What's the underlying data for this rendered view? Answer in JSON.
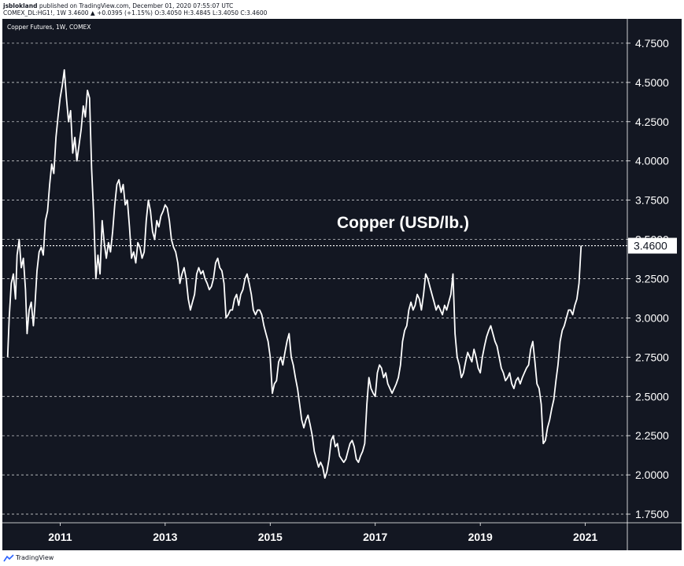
{
  "header": {
    "publisher": "jsblokland",
    "published_text": "published on TradingView.com, December 01, 2020 07:55:07 UTC",
    "symbol_line": "COMEX_DL:HG1!, 1W  3.4600  ▲ +0.0395 (+1.15%)  O:3.4050  H:3.4845  L:3.4050  C:3.4600"
  },
  "instrument_label": "Copper Futures, 1W, COMEX",
  "footer": {
    "brand": "TradingView",
    "logo_icon": "tradingview-logo-icon"
  },
  "colors": {
    "background": "#131722",
    "line": "#ffffff",
    "grid": "#ffffff",
    "last_price_box": "#ffffff",
    "axis_text": "#ffffff"
  },
  "chart_data": {
    "type": "line",
    "title": "Copper (USD/lb.)",
    "xlabel": "",
    "ylabel": "",
    "series": [
      {
        "values": [
          [
            2010.0,
            2.75
          ],
          [
            2010.03,
            3.0
          ],
          [
            2010.07,
            3.22
          ],
          [
            2010.11,
            3.28
          ],
          [
            2010.15,
            3.12
          ],
          [
            2010.18,
            3.4
          ],
          [
            2010.22,
            3.5
          ],
          [
            2010.26,
            3.32
          ],
          [
            2010.3,
            3.38
          ],
          [
            2010.34,
            3.18
          ],
          [
            2010.37,
            2.9
          ],
          [
            2010.41,
            3.05
          ],
          [
            2010.45,
            3.1
          ],
          [
            2010.49,
            2.95
          ],
          [
            2010.52,
            3.08
          ],
          [
            2010.56,
            3.3
          ],
          [
            2010.6,
            3.42
          ],
          [
            2010.64,
            3.45
          ],
          [
            2010.68,
            3.4
          ],
          [
            2010.72,
            3.62
          ],
          [
            2010.76,
            3.68
          ],
          [
            2010.8,
            3.85
          ],
          [
            2010.84,
            3.98
          ],
          [
            2010.88,
            3.92
          ],
          [
            2010.92,
            4.15
          ],
          [
            2010.96,
            4.28
          ],
          [
            2011.0,
            4.4
          ],
          [
            2011.04,
            4.48
          ],
          [
            2011.08,
            4.58
          ],
          [
            2011.12,
            4.4
          ],
          [
            2011.16,
            4.25
          ],
          [
            2011.2,
            4.32
          ],
          [
            2011.24,
            4.05
          ],
          [
            2011.28,
            4.15
          ],
          [
            2011.32,
            4.0
          ],
          [
            2011.36,
            4.1
          ],
          [
            2011.4,
            4.2
          ],
          [
            2011.44,
            4.35
          ],
          [
            2011.48,
            4.28
          ],
          [
            2011.52,
            4.45
          ],
          [
            2011.56,
            4.4
          ],
          [
            2011.6,
            3.95
          ],
          [
            2011.64,
            3.65
          ],
          [
            2011.68,
            3.25
          ],
          [
            2011.72,
            3.4
          ],
          [
            2011.76,
            3.28
          ],
          [
            2011.8,
            3.62
          ],
          [
            2011.84,
            3.48
          ],
          [
            2011.88,
            3.38
          ],
          [
            2011.92,
            3.48
          ],
          [
            2011.96,
            3.42
          ],
          [
            2012.0,
            3.55
          ],
          [
            2012.04,
            3.72
          ],
          [
            2012.08,
            3.85
          ],
          [
            2012.12,
            3.88
          ],
          [
            2012.16,
            3.8
          ],
          [
            2012.2,
            3.85
          ],
          [
            2012.24,
            3.72
          ],
          [
            2012.28,
            3.75
          ],
          [
            2012.32,
            3.58
          ],
          [
            2012.36,
            3.38
          ],
          [
            2012.4,
            3.42
          ],
          [
            2012.44,
            3.35
          ],
          [
            2012.48,
            3.48
          ],
          [
            2012.52,
            3.45
          ],
          [
            2012.56,
            3.38
          ],
          [
            2012.6,
            3.42
          ],
          [
            2012.64,
            3.62
          ],
          [
            2012.68,
            3.75
          ],
          [
            2012.72,
            3.68
          ],
          [
            2012.76,
            3.55
          ],
          [
            2012.8,
            3.5
          ],
          [
            2012.84,
            3.62
          ],
          [
            2012.88,
            3.58
          ],
          [
            2012.92,
            3.65
          ],
          [
            2012.96,
            3.68
          ],
          [
            2013.0,
            3.72
          ],
          [
            2013.04,
            3.7
          ],
          [
            2013.08,
            3.62
          ],
          [
            2013.12,
            3.5
          ],
          [
            2013.16,
            3.45
          ],
          [
            2013.2,
            3.42
          ],
          [
            2013.24,
            3.35
          ],
          [
            2013.28,
            3.22
          ],
          [
            2013.32,
            3.28
          ],
          [
            2013.36,
            3.32
          ],
          [
            2013.4,
            3.25
          ],
          [
            2013.44,
            3.12
          ],
          [
            2013.48,
            3.05
          ],
          [
            2013.52,
            3.1
          ],
          [
            2013.56,
            3.15
          ],
          [
            2013.6,
            3.28
          ],
          [
            2013.64,
            3.32
          ],
          [
            2013.68,
            3.28
          ],
          [
            2013.72,
            3.3
          ],
          [
            2013.76,
            3.25
          ],
          [
            2013.8,
            3.22
          ],
          [
            2013.84,
            3.18
          ],
          [
            2013.88,
            3.2
          ],
          [
            2013.92,
            3.25
          ],
          [
            2013.96,
            3.35
          ],
          [
            2014.0,
            3.38
          ],
          [
            2014.04,
            3.32
          ],
          [
            2014.08,
            3.3
          ],
          [
            2014.12,
            3.22
          ],
          [
            2014.16,
            3.0
          ],
          [
            2014.2,
            3.02
          ],
          [
            2014.24,
            3.05
          ],
          [
            2014.28,
            3.05
          ],
          [
            2014.32,
            3.12
          ],
          [
            2014.36,
            3.15
          ],
          [
            2014.4,
            3.08
          ],
          [
            2014.44,
            3.15
          ],
          [
            2014.48,
            3.18
          ],
          [
            2014.52,
            3.25
          ],
          [
            2014.56,
            3.28
          ],
          [
            2014.6,
            3.22
          ],
          [
            2014.64,
            3.15
          ],
          [
            2014.68,
            3.05
          ],
          [
            2014.72,
            3.02
          ],
          [
            2014.76,
            3.05
          ],
          [
            2014.8,
            3.05
          ],
          [
            2014.84,
            3.02
          ],
          [
            2014.88,
            2.95
          ],
          [
            2014.92,
            2.9
          ],
          [
            2014.96,
            2.85
          ],
          [
            2015.0,
            2.75
          ],
          [
            2015.04,
            2.52
          ],
          [
            2015.08,
            2.58
          ],
          [
            2015.12,
            2.6
          ],
          [
            2015.16,
            2.72
          ],
          [
            2015.2,
            2.75
          ],
          [
            2015.24,
            2.7
          ],
          [
            2015.28,
            2.78
          ],
          [
            2015.32,
            2.85
          ],
          [
            2015.36,
            2.9
          ],
          [
            2015.4,
            2.75
          ],
          [
            2015.44,
            2.7
          ],
          [
            2015.48,
            2.62
          ],
          [
            2015.52,
            2.55
          ],
          [
            2015.56,
            2.45
          ],
          [
            2015.6,
            2.35
          ],
          [
            2015.64,
            2.3
          ],
          [
            2015.68,
            2.35
          ],
          [
            2015.72,
            2.38
          ],
          [
            2015.76,
            2.32
          ],
          [
            2015.8,
            2.25
          ],
          [
            2015.84,
            2.15
          ],
          [
            2015.88,
            2.1
          ],
          [
            2015.92,
            2.05
          ],
          [
            2015.96,
            2.08
          ],
          [
            2016.0,
            2.05
          ],
          [
            2016.04,
            1.98
          ],
          [
            2016.08,
            2.02
          ],
          [
            2016.12,
            2.1
          ],
          [
            2016.16,
            2.22
          ],
          [
            2016.2,
            2.25
          ],
          [
            2016.24,
            2.18
          ],
          [
            2016.28,
            2.2
          ],
          [
            2016.32,
            2.12
          ],
          [
            2016.36,
            2.1
          ],
          [
            2016.4,
            2.08
          ],
          [
            2016.44,
            2.1
          ],
          [
            2016.48,
            2.15
          ],
          [
            2016.52,
            2.2
          ],
          [
            2016.56,
            2.22
          ],
          [
            2016.6,
            2.18
          ],
          [
            2016.64,
            2.1
          ],
          [
            2016.68,
            2.08
          ],
          [
            2016.72,
            2.12
          ],
          [
            2016.76,
            2.15
          ],
          [
            2016.8,
            2.2
          ],
          [
            2016.84,
            2.45
          ],
          [
            2016.88,
            2.62
          ],
          [
            2016.92,
            2.55
          ],
          [
            2016.96,
            2.52
          ],
          [
            2017.0,
            2.5
          ],
          [
            2017.04,
            2.65
          ],
          [
            2017.08,
            2.7
          ],
          [
            2017.12,
            2.68
          ],
          [
            2017.16,
            2.62
          ],
          [
            2017.2,
            2.65
          ],
          [
            2017.24,
            2.58
          ],
          [
            2017.28,
            2.55
          ],
          [
            2017.32,
            2.52
          ],
          [
            2017.36,
            2.55
          ],
          [
            2017.4,
            2.58
          ],
          [
            2017.44,
            2.62
          ],
          [
            2017.48,
            2.7
          ],
          [
            2017.52,
            2.85
          ],
          [
            2017.56,
            2.92
          ],
          [
            2017.6,
            2.95
          ],
          [
            2017.64,
            3.05
          ],
          [
            2017.68,
            3.1
          ],
          [
            2017.72,
            3.05
          ],
          [
            2017.76,
            3.08
          ],
          [
            2017.8,
            3.15
          ],
          [
            2017.84,
            3.12
          ],
          [
            2017.88,
            3.05
          ],
          [
            2017.92,
            3.15
          ],
          [
            2017.96,
            3.28
          ],
          [
            2018.0,
            3.25
          ],
          [
            2018.04,
            3.2
          ],
          [
            2018.08,
            3.15
          ],
          [
            2018.12,
            3.1
          ],
          [
            2018.16,
            3.05
          ],
          [
            2018.2,
            3.08
          ],
          [
            2018.24,
            3.05
          ],
          [
            2018.28,
            3.02
          ],
          [
            2018.32,
            3.08
          ],
          [
            2018.36,
            3.05
          ],
          [
            2018.4,
            3.1
          ],
          [
            2018.44,
            3.15
          ],
          [
            2018.48,
            3.28
          ],
          [
            2018.52,
            2.9
          ],
          [
            2018.56,
            2.75
          ],
          [
            2018.6,
            2.7
          ],
          [
            2018.64,
            2.62
          ],
          [
            2018.68,
            2.65
          ],
          [
            2018.72,
            2.72
          ],
          [
            2018.76,
            2.78
          ],
          [
            2018.8,
            2.75
          ],
          [
            2018.84,
            2.72
          ],
          [
            2018.88,
            2.8
          ],
          [
            2018.92,
            2.75
          ],
          [
            2018.96,
            2.68
          ],
          [
            2019.0,
            2.65
          ],
          [
            2019.04,
            2.75
          ],
          [
            2019.08,
            2.82
          ],
          [
            2019.12,
            2.88
          ],
          [
            2019.16,
            2.92
          ],
          [
            2019.2,
            2.95
          ],
          [
            2019.24,
            2.9
          ],
          [
            2019.28,
            2.85
          ],
          [
            2019.32,
            2.82
          ],
          [
            2019.36,
            2.75
          ],
          [
            2019.4,
            2.68
          ],
          [
            2019.44,
            2.65
          ],
          [
            2019.48,
            2.6
          ],
          [
            2019.52,
            2.62
          ],
          [
            2019.56,
            2.65
          ],
          [
            2019.6,
            2.58
          ],
          [
            2019.64,
            2.55
          ],
          [
            2019.68,
            2.6
          ],
          [
            2019.72,
            2.62
          ],
          [
            2019.76,
            2.58
          ],
          [
            2019.8,
            2.62
          ],
          [
            2019.84,
            2.65
          ],
          [
            2019.88,
            2.68
          ],
          [
            2019.92,
            2.7
          ],
          [
            2019.96,
            2.8
          ],
          [
            2020.0,
            2.85
          ],
          [
            2020.04,
            2.72
          ],
          [
            2020.08,
            2.58
          ],
          [
            2020.12,
            2.55
          ],
          [
            2020.16,
            2.45
          ],
          [
            2020.2,
            2.2
          ],
          [
            2020.24,
            2.22
          ],
          [
            2020.28,
            2.3
          ],
          [
            2020.32,
            2.35
          ],
          [
            2020.36,
            2.42
          ],
          [
            2020.4,
            2.48
          ],
          [
            2020.44,
            2.6
          ],
          [
            2020.48,
            2.7
          ],
          [
            2020.52,
            2.85
          ],
          [
            2020.56,
            2.92
          ],
          [
            2020.6,
            2.95
          ],
          [
            2020.64,
            3.0
          ],
          [
            2020.68,
            3.05
          ],
          [
            2020.72,
            3.05
          ],
          [
            2020.76,
            3.02
          ],
          [
            2020.8,
            3.08
          ],
          [
            2020.84,
            3.12
          ],
          [
            2020.88,
            3.22
          ],
          [
            2020.92,
            3.46
          ]
        ]
      }
    ],
    "x_ticks": [
      2011,
      2013,
      2015,
      2017,
      2019,
      2021
    ],
    "x_tick_labels": [
      "2011",
      "2013",
      "2015",
      "2017",
      "2019",
      "2021"
    ],
    "y_ticks": [
      1.75,
      2.0,
      2.25,
      2.5,
      2.75,
      3.0,
      3.25,
      3.5,
      3.75,
      4.0,
      4.25,
      4.5,
      4.75
    ],
    "y_tick_labels": [
      "1.7500",
      "2.0000",
      "2.2500",
      "2.5000",
      "2.7500",
      "3.0000",
      "3.2500",
      "3.5000",
      "3.7500",
      "4.0000",
      "4.2500",
      "4.5000",
      "4.7500"
    ],
    "last_price": 3.46,
    "last_price_label": "3.4600",
    "xlim": [
      2009.9,
      2021.8
    ],
    "ylim": [
      1.695,
      4.905
    ],
    "grid": "horizontal dashed",
    "legend": "none"
  }
}
